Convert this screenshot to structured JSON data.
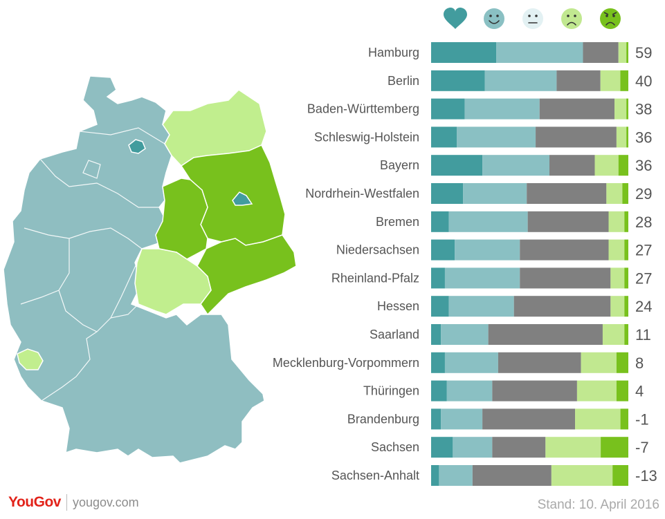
{
  "chart_data": {
    "type": "bar",
    "stacked": true,
    "orientation": "horizontal",
    "legend_icons": [
      "heart-icon",
      "smiley-happy-icon",
      "smiley-neutral-icon",
      "smiley-sad-icon",
      "smiley-angry-icon"
    ],
    "categories": [
      "Hamburg",
      "Berlin",
      "Baden-Württemberg",
      "Schleswig-Holstein",
      "Bayern",
      "Nordrhein-Westfalen",
      "Bremen",
      "Niedersachsen",
      "Rheinland-Pfalz",
      "Hessen",
      "Saarland",
      "Mecklenburg-Vorpommern",
      "Thüringen",
      "Brandenburg",
      "Sachsen",
      "Sachsen-Anhalt"
    ],
    "net_scores": [
      "59",
      "40",
      "38",
      "36",
      "36",
      "29",
      "28",
      "27",
      "27",
      "24",
      "11",
      "8",
      "4",
      "-1",
      "-7",
      "-13"
    ],
    "series": [
      {
        "key": "love",
        "color": "#429c9e",
        "values": [
          33,
          27,
          17,
          13,
          26,
          16,
          9,
          12,
          7,
          9,
          5,
          7,
          8,
          5,
          11,
          4
        ]
      },
      {
        "key": "like",
        "color": "#8ac0c3",
        "values": [
          44,
          36,
          38,
          40,
          34,
          32,
          40,
          33,
          38,
          33,
          24,
          27,
          23,
          21,
          20,
          17
        ]
      },
      {
        "key": "neutral",
        "color": "#808080",
        "values": [
          18,
          22,
          38,
          41,
          23,
          40,
          41,
          45,
          46,
          49,
          58,
          42,
          43,
          47,
          27,
          40
        ]
      },
      {
        "key": "dislike",
        "color": "#c1e890",
        "values": [
          4,
          10,
          6,
          5,
          12,
          8,
          8,
          8,
          7,
          7,
          11,
          18,
          20,
          23,
          28,
          31
        ]
      },
      {
        "key": "hate",
        "color": "#78c11d",
        "values": [
          1,
          4,
          1,
          1,
          5,
          3,
          2,
          2,
          2,
          2,
          2,
          6,
          6,
          4,
          14,
          8
        ]
      }
    ]
  },
  "map": {
    "category_colors": {
      "love": "#429c9e",
      "like": "#8fbec1",
      "dislike": "#c1ee8e",
      "hate": "#78c11d"
    }
  },
  "footer": {
    "logo": "YouGov",
    "url": "yougov.com",
    "stand": "Stand: 10. April 2016"
  }
}
